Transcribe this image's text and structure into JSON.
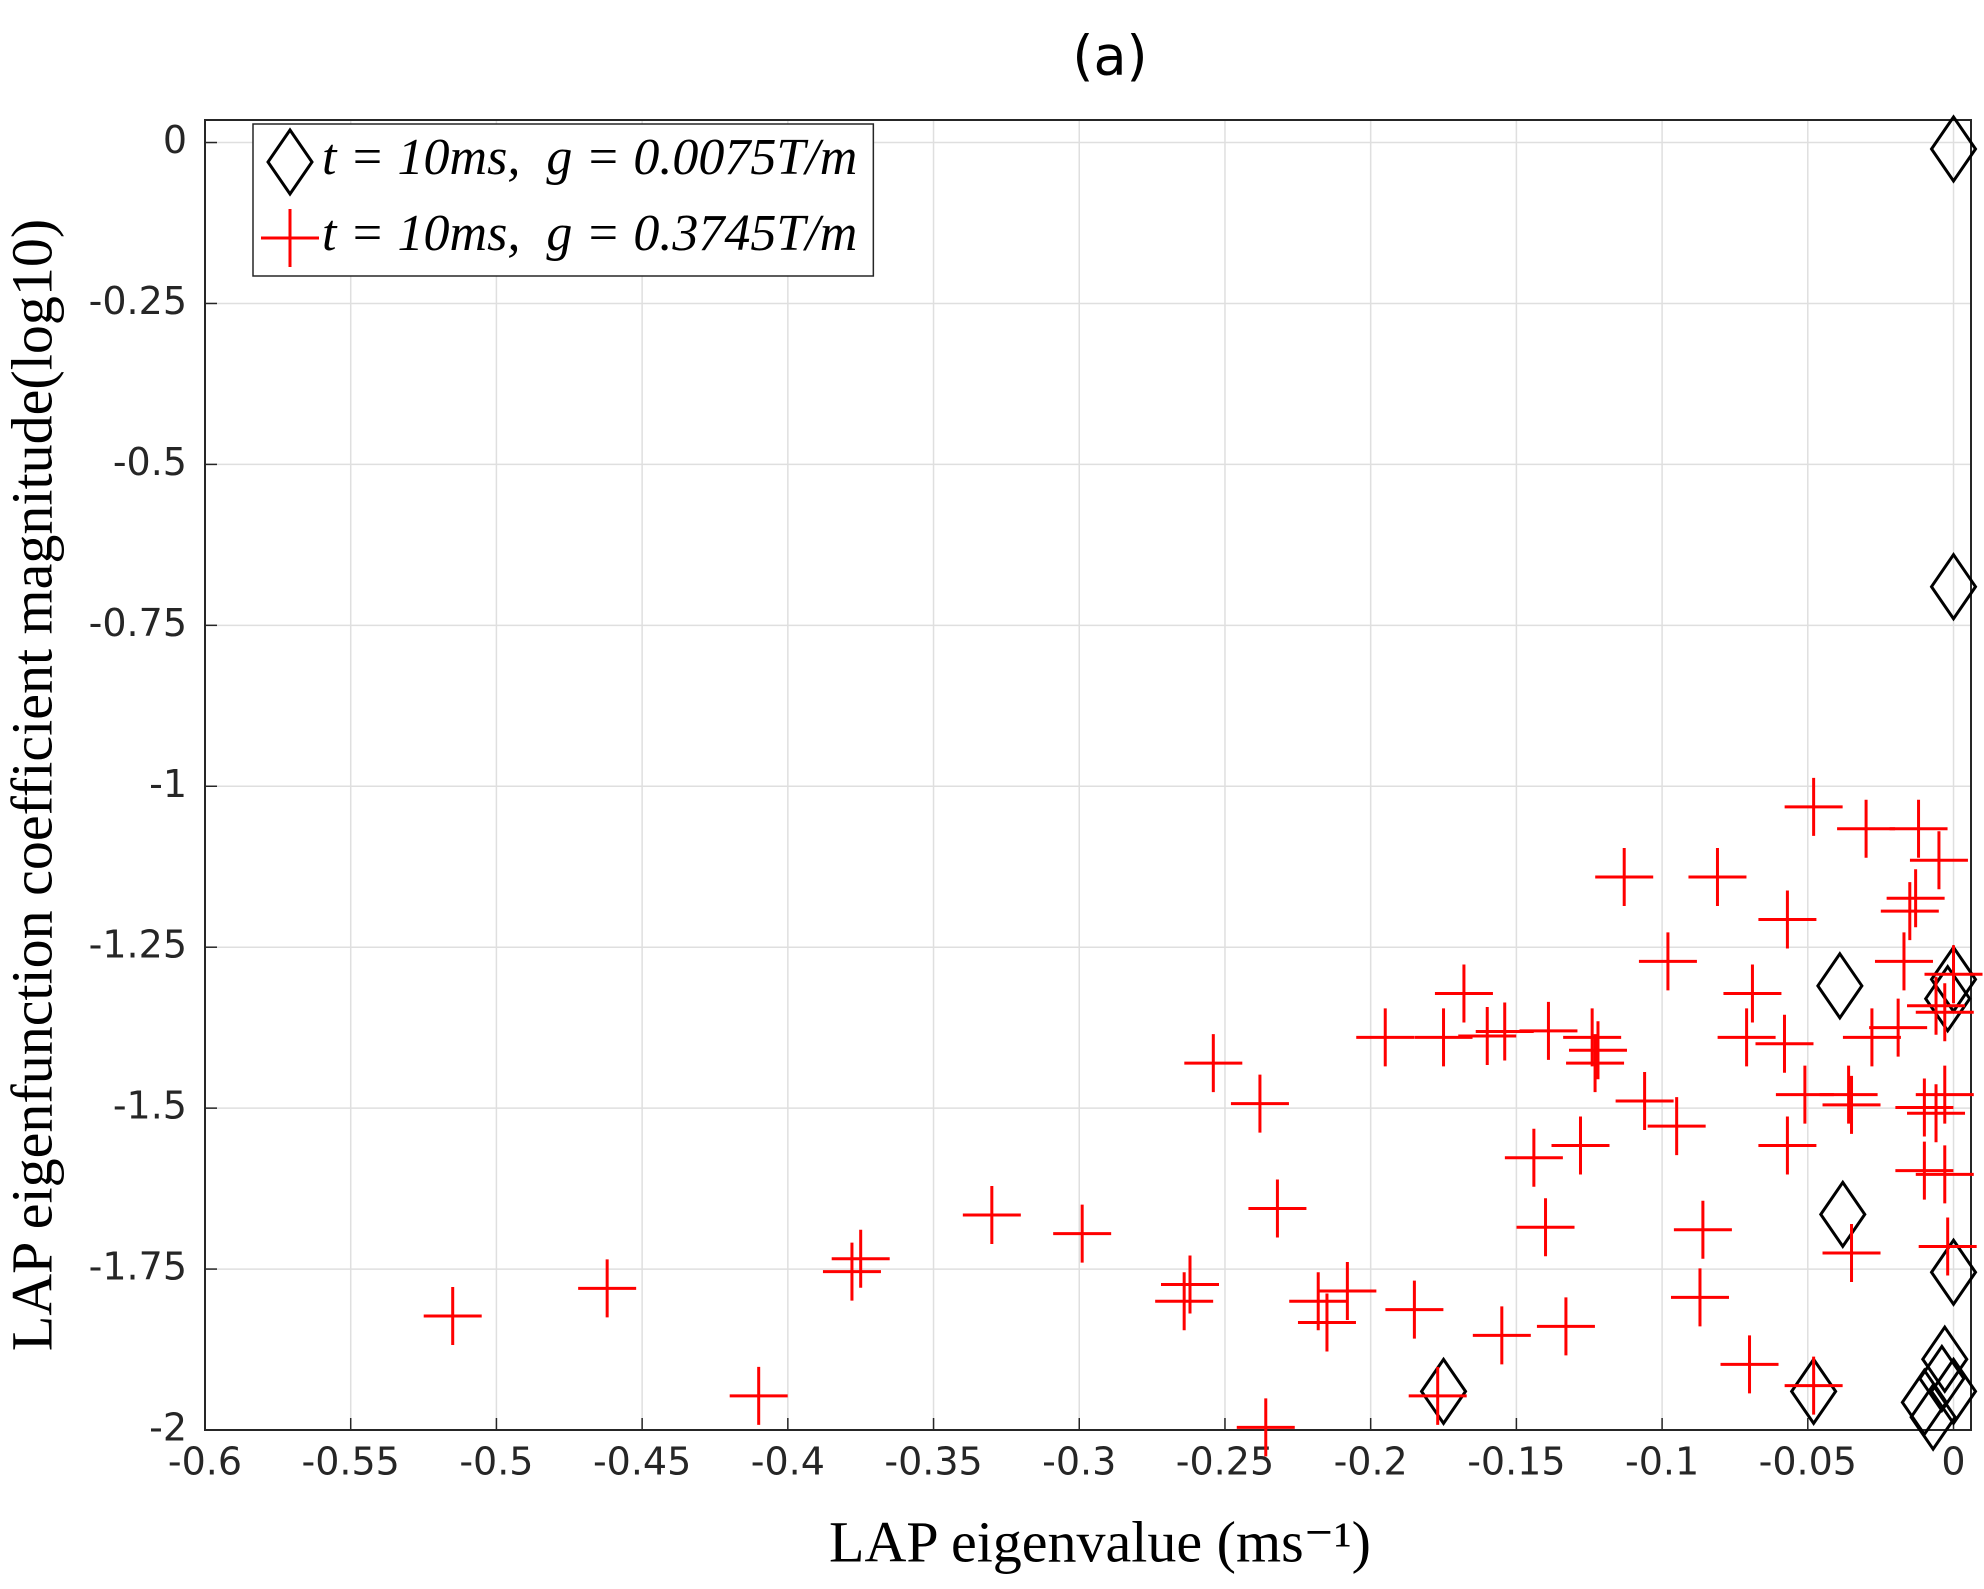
{
  "chart_data": {
    "type": "scatter",
    "title": "(a)",
    "x_label": "LAP eigenvalue (ms⁻¹)",
    "y_label": "LAP eigenfunction coefficient magnitude(log10)",
    "xlim": [
      -0.6,
      0.006
    ],
    "ylim": [
      -2,
      0.035
    ],
    "xticks": [
      -0.6,
      -0.55,
      -0.5,
      -0.45,
      -0.4,
      -0.35,
      -0.3,
      -0.25,
      -0.2,
      -0.15,
      -0.1,
      -0.05,
      0
    ],
    "yticks": [
      -2,
      -1.75,
      -1.5,
      -1.25,
      -1,
      -0.75,
      -0.5,
      -0.25,
      0
    ],
    "grid": true,
    "legend": "upper-left",
    "series": [
      {
        "name": "t = 10ms,  g = 0.0075T/m",
        "color": "#000000",
        "marker": "diamond",
        "x": [
          0,
          0,
          -0.039,
          0,
          -0.002,
          -0.038,
          0,
          -0.003,
          -0.004,
          -0.01,
          -0.007,
          -0.175,
          -0.048,
          0
        ],
        "y": [
          -0.01,
          -0.69,
          -1.31,
          -1.3,
          -1.33,
          -1.665,
          -1.755,
          -1.89,
          -1.92,
          -1.957,
          -1.98,
          -1.94,
          -1.94,
          -1.94
        ]
      },
      {
        "name": "t = 10ms,  g = 0.3745T/m",
        "color": "#ff0000",
        "marker": "plus",
        "x": [
          -0.048,
          -0.03,
          -0.012,
          -0.005,
          -0.113,
          -0.081,
          -0.013,
          -0.015,
          -0.057,
          -0.098,
          -0.017,
          -0.069,
          0,
          -0.168,
          -0.003,
          -0.006,
          -0.154,
          -0.16,
          -0.175,
          -0.195,
          -0.028,
          -0.019,
          -0.071,
          -0.058,
          -0.124,
          -0.122,
          -0.123,
          -0.139,
          -0.254,
          -0.238,
          -0.036,
          -0.051,
          -0.035,
          -0.01,
          -0.003,
          -0.006,
          -0.106,
          -0.095,
          -0.057,
          -0.128,
          -0.144,
          -0.01,
          -0.003,
          -0.232,
          -0.33,
          -0.299,
          -0.14,
          -0.086,
          -0.035,
          -0.002,
          -0.375,
          -0.378,
          -0.262,
          -0.264,
          -0.208,
          -0.218,
          -0.215,
          -0.462,
          -0.515,
          -0.185,
          -0.087,
          -0.133,
          -0.155,
          -0.07,
          -0.41,
          -0.177,
          -0.048,
          -0.236
        ],
        "y": [
          -1.032,
          -1.066,
          -1.066,
          -1.115,
          -1.141,
          -1.141,
          -1.174,
          -1.194,
          -1.207,
          -1.272,
          -1.272,
          -1.322,
          -1.292,
          -1.322,
          -1.351,
          -1.341,
          -1.381,
          -1.388,
          -1.39,
          -1.39,
          -1.39,
          -1.375,
          -1.39,
          -1.4,
          -1.39,
          -1.41,
          -1.43,
          -1.38,
          -1.43,
          -1.493,
          -1.479,
          -1.479,
          -1.495,
          -1.499,
          -1.479,
          -1.508,
          -1.489,
          -1.528,
          -1.558,
          -1.558,
          -1.577,
          -1.597,
          -1.603,
          -1.656,
          -1.666,
          -1.695,
          -1.685,
          -1.689,
          -1.725,
          -1.715,
          -1.734,
          -1.754,
          -1.774,
          -1.8,
          -1.784,
          -1.8,
          -1.833,
          -1.78,
          -1.823,
          -1.813,
          -1.794,
          -1.839,
          -1.853,
          -1.898,
          -1.947,
          -1.947,
          -1.931,
          -1.996
        ]
      }
    ]
  }
}
